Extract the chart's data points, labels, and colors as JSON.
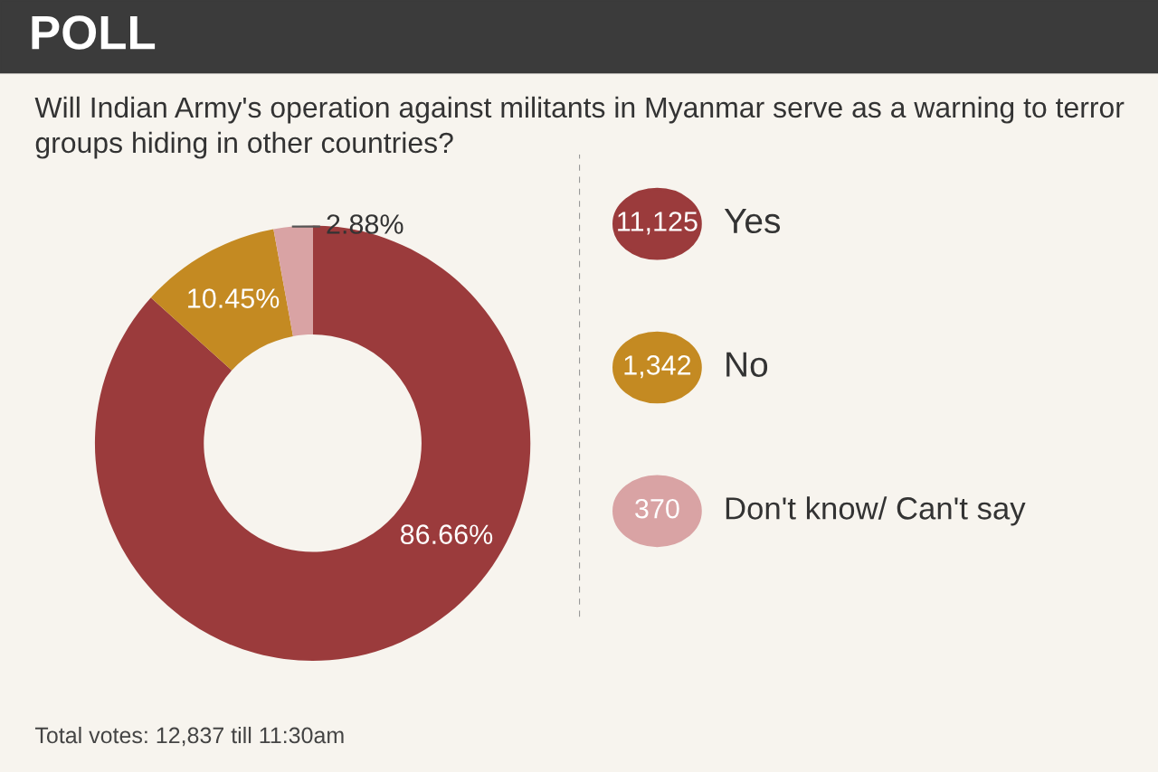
{
  "chart_data": {
    "type": "donut",
    "title": "POLL",
    "subtitle": "Will Indian Army's operation against militants in Myanmar serve as a warning to terror groups hiding in other countries?",
    "categories": [
      "Yes",
      "No",
      "Don't know/ Can't say"
    ],
    "values": [
      86.66,
      10.45,
      2.88
    ],
    "colors": [
      "#9b3b3c",
      "#c48a22",
      "#d9a3a4"
    ],
    "value_labels": [
      "86.66%",
      "10.45%",
      "2.88%"
    ],
    "legend": "right",
    "annotations": [
      {
        "text": "11,125",
        "x": "Yes"
      },
      {
        "text": "1,342",
        "x": "No"
      },
      {
        "text": "370",
        "x": "Don't know/ Can't say"
      },
      "Total votes: 12,837 till 11:30am"
    ]
  }
}
